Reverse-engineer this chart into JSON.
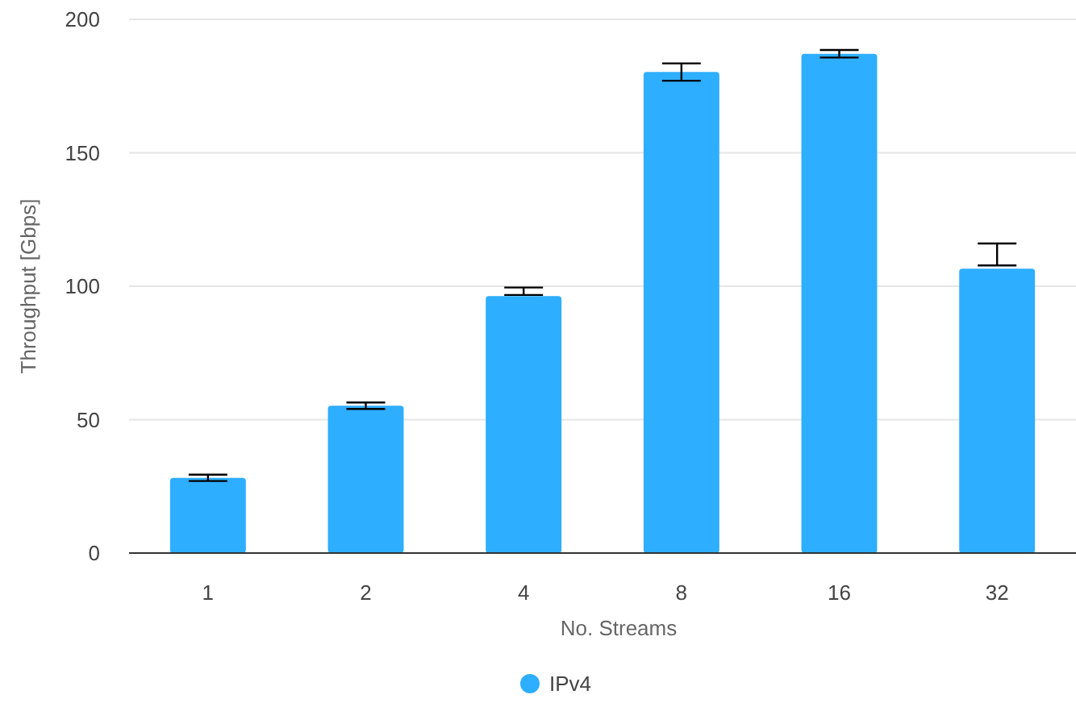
{
  "chart_data": {
    "type": "bar",
    "xlabel": "No. Streams",
    "ylabel": "Throughput [Gbps]",
    "categories": [
      "1",
      "2",
      "4",
      "8",
      "16",
      "32"
    ],
    "series": [
      {
        "name": "IPv4",
        "color": "#2eaefe",
        "values": [
          28.2,
          55.2,
          96.3,
          180.3,
          187.1,
          106.6
        ],
        "errors": [
          1.2,
          1.2,
          [
            96.7,
            99.5
          ],
          [
            177,
            183.5
          ],
          1.4,
          [
            107.8,
            116
          ]
        ]
      }
    ],
    "ylim": [
      0,
      200
    ],
    "yticks": [
      0,
      50,
      100,
      150,
      200
    ],
    "grid": "y",
    "legend": "bottom"
  }
}
